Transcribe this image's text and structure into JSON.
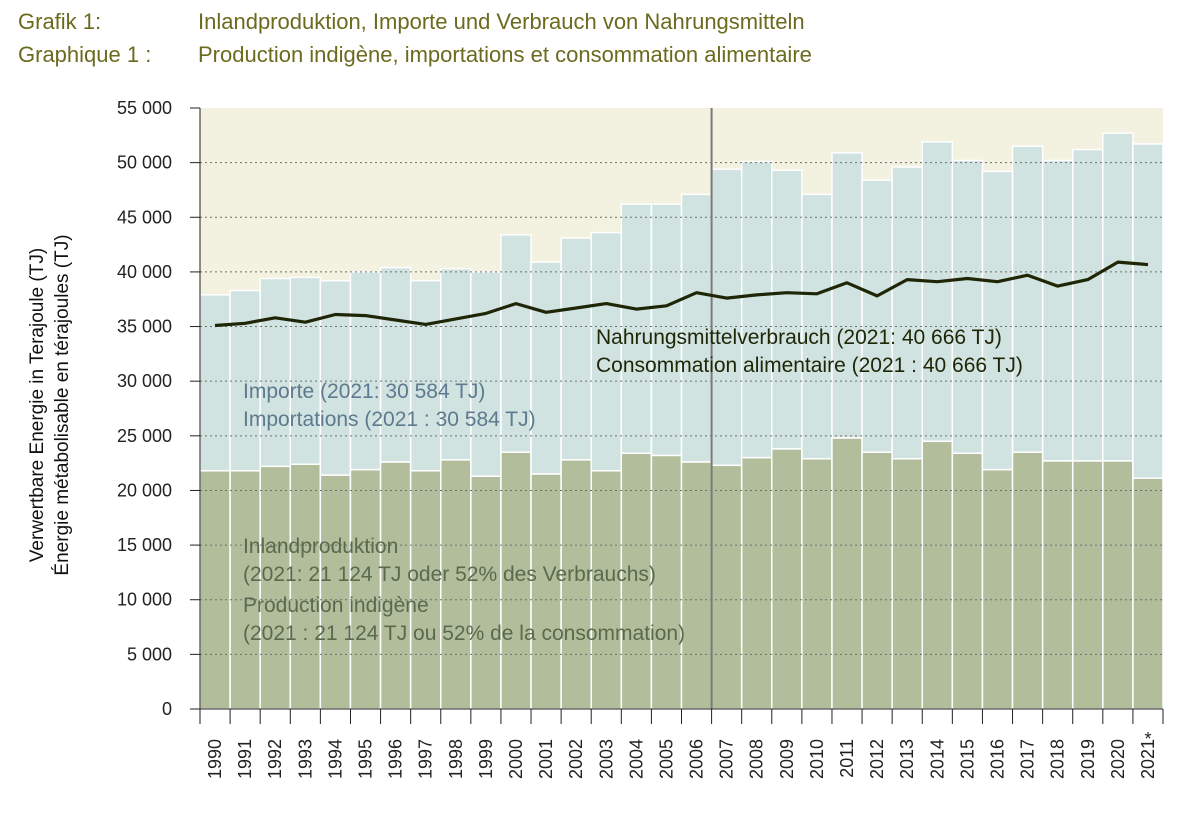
{
  "title": {
    "de_label": "Grafik 1:",
    "de_text": "Inlandproduktion, Importe und Verbrauch von Nahrungsmitteln",
    "fr_label": "Graphique 1 :",
    "fr_text": "Production indigène, importations et consommation alimentaire"
  },
  "chart_data": {
    "type": "bar",
    "stacked": true,
    "x": [
      "1990",
      "1991",
      "1992",
      "1993",
      "1994",
      "1995",
      "1996",
      "1997",
      "1998",
      "1999",
      "2000",
      "2001",
      "2002",
      "2003",
      "2004",
      "2005",
      "2006",
      "2007",
      "2008",
      "2009",
      "2010",
      "2011",
      "2012",
      "2013",
      "2014",
      "2015",
      "2016",
      "2017",
      "2018",
      "2019",
      "2020",
      "2021"
    ],
    "x_marker": "2021 *",
    "ylabel_de": "Verwertbare Energie in Terajoule (TJ)",
    "ylabel_fr": "Énergie métabolisable en térajoules (TJ)",
    "ylim": [
      0,
      55000
    ],
    "yticks": [
      0,
      5000,
      10000,
      15000,
      20000,
      25000,
      30000,
      35000,
      40000,
      45000,
      50000,
      55000
    ],
    "ytick_labels": [
      "0",
      "5 000",
      "10 000",
      "15 000",
      "20 000",
      "25 000",
      "30 000",
      "35 000",
      "40 000",
      "45 000",
      "50 000",
      "55 000"
    ],
    "grid": "horizontal dotted",
    "period_break_after": "2006",
    "series": [
      {
        "key": "production",
        "kind": "bar",
        "color": "#b2bd9c",
        "label_lines": [
          "Inlandproduktion",
          "(2021: 21 124 TJ oder 52% des Verbrauchs)",
          "Production indigène",
          "(2021 : 21 124 TJ ou 52% de la consommation)"
        ],
        "values": [
          21800,
          21800,
          22200,
          22400,
          21400,
          21900,
          22600,
          21800,
          22800,
          21300,
          23500,
          21500,
          22800,
          21800,
          23400,
          23200,
          22600,
          22300,
          23000,
          23800,
          22900,
          24800,
          23500,
          22900,
          24500,
          23400,
          21900,
          23500,
          22700,
          22700,
          22700,
          21124
        ]
      },
      {
        "key": "imports",
        "kind": "bar",
        "color": "#d0e3e1",
        "label_lines": [
          "Importe (2021: 30 584 TJ)",
          "Importations (2021 : 30 584 TJ)"
        ],
        "values": [
          16100,
          16500,
          17200,
          17100,
          17800,
          18100,
          17800,
          17400,
          17500,
          18700,
          19900,
          19400,
          20300,
          21800,
          22800,
          23000,
          24500,
          27100,
          27100,
          25500,
          24200,
          26100,
          24900,
          26700,
          27400,
          26800,
          27300,
          28000,
          27500,
          28500,
          30000,
          30584
        ]
      },
      {
        "key": "consumption",
        "kind": "line",
        "color": "#1f2606",
        "label_lines": [
          "Nahrungsmittelverbrauch (2021: 40 666 TJ)",
          "Consommation alimentaire (2021 : 40 666 TJ)"
        ],
        "values": [
          35100,
          35300,
          35800,
          35400,
          36100,
          36000,
          35600,
          35200,
          35700,
          36200,
          37100,
          36300,
          36700,
          37100,
          36600,
          36900,
          38100,
          37600,
          37900,
          38100,
          38000,
          39000,
          37800,
          39300,
          39100,
          39400,
          39100,
          39700,
          38700,
          39300,
          40900,
          40666
        ]
      }
    ],
    "colors": {
      "plot_bg": "#f3f1df",
      "text_imports": "#5e7a8e",
      "text_production": "#596a4d",
      "text_consumption": "#1f2606",
      "title": "#6b6a1e"
    }
  }
}
